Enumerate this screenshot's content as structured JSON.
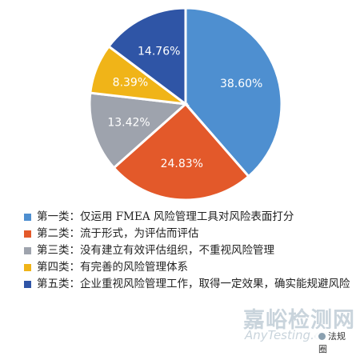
{
  "chart_data": {
    "type": "pie",
    "title": "",
    "categories": [
      "第一类：仅运用 FMEA 风险管理工具对风险表面打分",
      "第二类：流于形式，为评估而评估",
      "第三类：没有建立有效评估组织，不重视风险管理",
      "第四类：有完善的风险管理体系",
      "第五类：企业重视风险管理工作，取得一定效果，确实能规避风险"
    ],
    "values": [
      38.6,
      24.83,
      13.42,
      8.39,
      14.76
    ],
    "value_labels": [
      "38.60%",
      "24.83%",
      "13.42%",
      "8.39%",
      "14.76%"
    ],
    "colors": [
      "#4e8fd0",
      "#e3592a",
      "#9ea3ad",
      "#f0b418",
      "#2f55a6"
    ],
    "legend_position": "bottom"
  },
  "watermark": {
    "main": "嘉峪检测网",
    "sub": "AnyTesting.com",
    "badge": "法规圈",
    "badge_icon": "wechat-icon"
  }
}
